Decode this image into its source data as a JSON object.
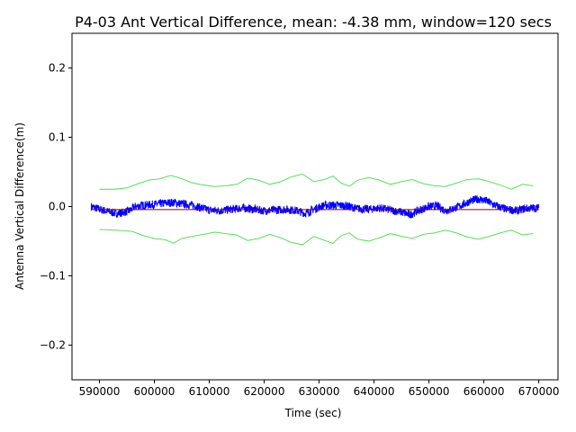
{
  "chart_data": {
    "type": "line",
    "title": "P4-03 Ant Vertical Difference, mean: -4.38 mm, window=120 secs",
    "xlabel": "Time (sec)",
    "ylabel": "Antenna Vertical Difference(m)",
    "xlim": [
      585000,
      673500
    ],
    "ylim": [
      -0.25,
      0.25
    ],
    "x_ticks": [
      590000,
      600000,
      610000,
      620000,
      630000,
      640000,
      650000,
      660000,
      670000
    ],
    "x_tick_labels": [
      "590000",
      "600000",
      "610000",
      "620000",
      "630000",
      "640000",
      "650000",
      "660000",
      "670000"
    ],
    "y_ticks": [
      0.2,
      0.1,
      0.0,
      -0.1,
      -0.2
    ],
    "y_tick_labels": [
      "0.2",
      "0.1",
      "0.0",
      "−0.1",
      "−0.2"
    ],
    "grid": false,
    "legend": "none",
    "colors": {
      "data": "#0000ff",
      "mean": "#8b0000",
      "envelope": "#44dd44",
      "axes": "#000000"
    },
    "series": [
      {
        "role": "signal",
        "x": [
          588500,
          590000,
          592000,
          593000,
          594000,
          595500,
          596500,
          598000,
          600000,
          602000,
          603500,
          605000,
          607000,
          608500,
          610000,
          612000,
          614000,
          616000,
          618000,
          620000,
          622000,
          624000,
          626000,
          627500,
          629000,
          631000,
          633000,
          635000,
          637000,
          639000,
          641000,
          643000,
          645000,
          646500,
          648000,
          650000,
          651500,
          653000,
          654500,
          656000,
          657500,
          659000,
          660500,
          662000,
          664000,
          666000,
          667500,
          669000,
          670000
        ],
        "y": [
          0.0,
          -0.004,
          -0.008,
          -0.01,
          -0.009,
          -0.006,
          0.0,
          0.002,
          0.003,
          0.005,
          0.006,
          0.004,
          0.002,
          -0.002,
          -0.005,
          -0.006,
          -0.004,
          -0.002,
          -0.004,
          -0.006,
          -0.005,
          -0.004,
          -0.006,
          -0.01,
          -0.004,
          0.002,
          0.002,
          0.001,
          -0.003,
          -0.004,
          -0.002,
          -0.005,
          -0.008,
          -0.012,
          -0.006,
          0.0,
          0.001,
          -0.006,
          -0.003,
          0.002,
          0.008,
          0.011,
          0.008,
          0.002,
          -0.004,
          -0.006,
          -0.003,
          -0.002,
          -0.002
        ],
        "noise": 0.006
      },
      {
        "role": "mean",
        "x": [
          588500,
          670000
        ],
        "y": [
          -0.00438,
          -0.00438
        ]
      },
      {
        "role": "upper-envelope",
        "x": [
          590000,
          593000,
          595000,
          597000,
          599000,
          601000,
          603000,
          605000,
          607000,
          609000,
          611000,
          613000,
          615000,
          617000,
          619000,
          621000,
          623000,
          625000,
          627000,
          629000,
          631000,
          632500,
          634000,
          635500,
          637000,
          639000,
          641000,
          643000,
          645000,
          647000,
          649000,
          651000,
          653000,
          655000,
          657000,
          659000,
          661000,
          663000,
          665000,
          667000,
          669000
        ],
        "y": [
          0.025,
          0.025,
          0.027,
          0.033,
          0.038,
          0.04,
          0.045,
          0.04,
          0.034,
          0.031,
          0.029,
          0.03,
          0.032,
          0.041,
          0.038,
          0.032,
          0.036,
          0.043,
          0.047,
          0.036,
          0.039,
          0.044,
          0.034,
          0.029,
          0.038,
          0.042,
          0.038,
          0.032,
          0.036,
          0.039,
          0.033,
          0.03,
          0.029,
          0.034,
          0.039,
          0.04,
          0.036,
          0.031,
          0.025,
          0.032,
          0.03
        ]
      },
      {
        "role": "lower-envelope",
        "x": [
          590000,
          593000,
          596000,
          598000,
          600000,
          602000,
          603500,
          605000,
          607000,
          609000,
          611000,
          613000,
          615000,
          617000,
          619000,
          621000,
          623000,
          625000,
          627000,
          629000,
          631000,
          632500,
          634000,
          635500,
          637000,
          639000,
          641000,
          643000,
          645000,
          647000,
          649000,
          651000,
          653000,
          655000,
          657000,
          659000,
          661000,
          663000,
          665000,
          667000,
          669000
        ],
        "y": [
          -0.033,
          -0.034,
          -0.036,
          -0.042,
          -0.046,
          -0.048,
          -0.053,
          -0.046,
          -0.043,
          -0.04,
          -0.037,
          -0.039,
          -0.041,
          -0.049,
          -0.046,
          -0.04,
          -0.045,
          -0.052,
          -0.055,
          -0.043,
          -0.049,
          -0.053,
          -0.042,
          -0.038,
          -0.047,
          -0.05,
          -0.045,
          -0.039,
          -0.043,
          -0.046,
          -0.04,
          -0.038,
          -0.034,
          -0.038,
          -0.044,
          -0.047,
          -0.043,
          -0.038,
          -0.034,
          -0.041,
          -0.039
        ]
      }
    ]
  }
}
